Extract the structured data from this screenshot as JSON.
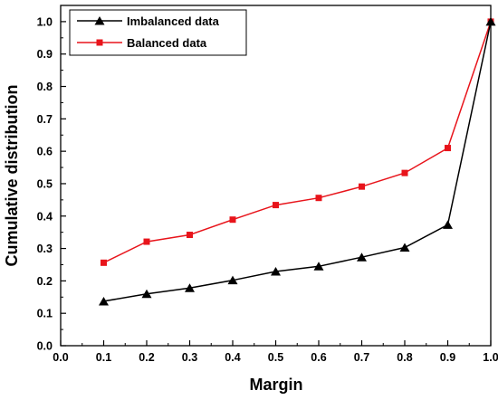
{
  "chart_data": {
    "type": "line",
    "xlabel": "Margin",
    "ylabel": "Cumulative distribution",
    "xlim": [
      0.0,
      1.0
    ],
    "ylim": [
      0.0,
      1.05
    ],
    "x_ticks": [
      "0.0",
      "0.1",
      "0.2",
      "0.3",
      "0.4",
      "0.5",
      "0.6",
      "0.7",
      "0.8",
      "0.9",
      "1.0"
    ],
    "y_ticks": [
      "0.0",
      "0.1",
      "0.2",
      "0.3",
      "0.4",
      "0.5",
      "0.6",
      "0.7",
      "0.8",
      "0.9",
      "1.0"
    ],
    "grid": false,
    "legend_position": "top-left",
    "x": [
      0.1,
      0.2,
      0.3,
      0.4,
      0.5,
      0.6,
      0.7,
      0.8,
      0.9,
      1.0
    ],
    "series": [
      {
        "name": "Imbalanced data",
        "color": "#000000",
        "marker": "triangle",
        "values": [
          0.137,
          0.16,
          0.178,
          0.202,
          0.229,
          0.245,
          0.273,
          0.303,
          0.373,
          1.0
        ]
      },
      {
        "name": "Balanced data",
        "color": "#e8141b",
        "marker": "square",
        "values": [
          0.256,
          0.321,
          0.342,
          0.389,
          0.434,
          0.456,
          0.491,
          0.533,
          0.61,
          1.0
        ]
      }
    ]
  }
}
